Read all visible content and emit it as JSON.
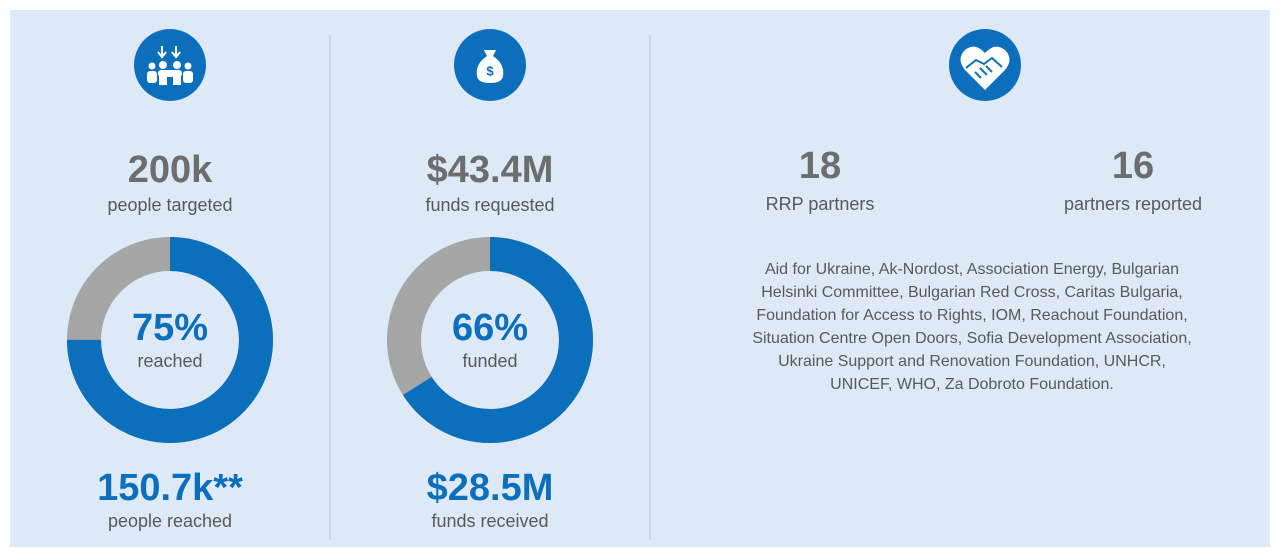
{
  "panels": [
    {
      "headline": "200k",
      "headline_caption": "people targeted",
      "donut": {
        "percent": 75,
        "percent_label": "75%",
        "caption": "reached"
      },
      "footer": "150.7k**",
      "footer_caption": "people reached"
    },
    {
      "headline": "$43.4M",
      "headline_caption": "funds requested",
      "donut": {
        "percent": 66,
        "percent_label": "66%",
        "caption": "funded"
      },
      "footer": "$28.5M",
      "footer_caption": "funds received"
    }
  ],
  "partners": {
    "stats": [
      {
        "value": "18",
        "caption": "RRP partners"
      },
      {
        "value": "16",
        "caption": "partners reported"
      }
    ],
    "list": "Aid for Ukraine, Ak-Nordost, Association Energy, Bulgarian Helsinki Committee, Bulgarian Red Cross, Caritas Bulgaria, Foundation for Access to Rights, IOM, Reachout Foundation, Situation Centre Open Doors, Sofia Development Association, Ukraine Support and Renovation Foundation, UNHCR, UNICEF, WHO, Za Dobroto Foundation."
  },
  "colors": {
    "accent": "#0b6fbb",
    "track": "#a6a6a6",
    "muted": "#6d6d6d",
    "text": "#595959"
  }
}
